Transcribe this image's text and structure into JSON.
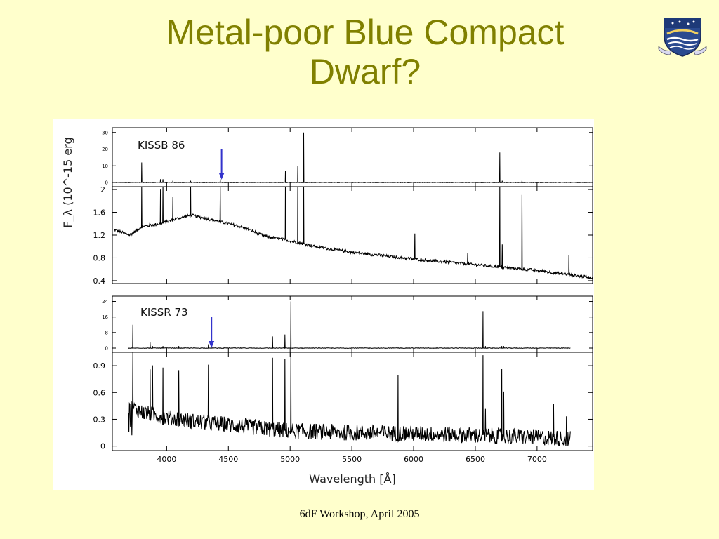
{
  "slide": {
    "title_line1": "Metal-poor Blue Compact",
    "title_line2": "Dwarf?",
    "footer": "6dF Workshop, April 2005",
    "title_color": "#808000",
    "background_color": "#ffffcc"
  },
  "chart_data": {
    "type": "line",
    "xlabel": "Wavelength [Å]",
    "ylabel": "F_λ (10^-15 erg",
    "x_ticks": [
      4000,
      4500,
      5000,
      5500,
      6000,
      6500,
      7000
    ],
    "xlim": [
      3560,
      7450
    ],
    "objects": [
      {
        "name": "KISSB 86",
        "arrow_at": 4445,
        "zoom_panel": {
          "ylim": [
            0,
            32
          ],
          "y_ticks": [
            0,
            10,
            20,
            30
          ]
        },
        "main_panel": {
          "ylim": [
            0.35,
            2.05
          ],
          "y_ticks": [
            0.4,
            0.8,
            1.2,
            1.6,
            2
          ]
        },
        "x_range": [
          3570,
          7450
        ],
        "continuum": [
          [
            3570,
            1.3
          ],
          [
            3700,
            1.2
          ],
          [
            3800,
            1.35
          ],
          [
            3950,
            1.4
          ],
          [
            4100,
            1.5
          ],
          [
            4200,
            1.55
          ],
          [
            4400,
            1.45
          ],
          [
            4600,
            1.35
          ],
          [
            4800,
            1.18
          ],
          [
            5000,
            1.1
          ],
          [
            5200,
            1.0
          ],
          [
            5500,
            0.9
          ],
          [
            6000,
            0.78
          ],
          [
            6500,
            0.68
          ],
          [
            7000,
            0.58
          ],
          [
            7450,
            0.45
          ]
        ],
        "lines": [
          {
            "wave": 3800,
            "main": 1.6,
            "zoom": 12
          },
          {
            "wave": 3950,
            "main": 0.6,
            "zoom": 2
          },
          {
            "wave": 3970,
            "main": 0.7,
            "zoom": 2
          },
          {
            "wave": 4050,
            "main": 0.4,
            "zoom": 1
          },
          {
            "wave": 4195,
            "main": 0.5,
            "zoom": 1
          },
          {
            "wave": 4435,
            "main": 0.8,
            "zoom": 2
          },
          {
            "wave": 4965,
            "main": 1.3,
            "zoom": 7
          },
          {
            "wave": 5065,
            "main": 1.1,
            "zoom": 10
          },
          {
            "wave": 5110,
            "main": 1.6,
            "zoom": 30
          },
          {
            "wave": 6010,
            "main": 0.45,
            "zoom": 0
          },
          {
            "wave": 6440,
            "main": 0.2,
            "zoom": 0
          },
          {
            "wave": 6700,
            "main": 1.6,
            "zoom": 18
          },
          {
            "wave": 6720,
            "main": 0.4,
            "zoom": 1
          },
          {
            "wave": 6880,
            "main": 1.3,
            "zoom": 1
          },
          {
            "wave": 7260,
            "main": 0.35,
            "zoom": 0
          }
        ]
      },
      {
        "name": "KISSR 73",
        "arrow_at": 4363,
        "zoom_panel": {
          "ylim": [
            0,
            26
          ],
          "y_ticks": [
            0,
            8,
            16,
            24
          ]
        },
        "main_panel": {
          "ylim": [
            -0.05,
            1.05
          ],
          "y_ticks": [
            0,
            0.3,
            0.6,
            0.9
          ]
        },
        "x_range": [
          3690,
          7270
        ],
        "continuum": [
          [
            3700,
            0.45
          ],
          [
            3800,
            0.38
          ],
          [
            4000,
            0.32
          ],
          [
            4200,
            0.28
          ],
          [
            4500,
            0.24
          ],
          [
            5000,
            0.17
          ],
          [
            5500,
            0.15
          ],
          [
            6000,
            0.14
          ],
          [
            6500,
            0.12
          ],
          [
            7000,
            0.1
          ],
          [
            7270,
            0.08
          ]
        ],
        "lines": [
          {
            "wave": 3727,
            "main": 0.7,
            "zoom": 12
          },
          {
            "wave": 3869,
            "main": 0.5,
            "zoom": 3
          },
          {
            "wave": 3889,
            "main": 0.55,
            "zoom": 1
          },
          {
            "wave": 3970,
            "main": 0.55,
            "zoom": 1
          },
          {
            "wave": 4101,
            "main": 0.55,
            "zoom": 1
          },
          {
            "wave": 4340,
            "main": 0.65,
            "zoom": 2
          },
          {
            "wave": 4861,
            "main": 0.8,
            "zoom": 6
          },
          {
            "wave": 4959,
            "main": 0.8,
            "zoom": 7
          },
          {
            "wave": 5007,
            "main": 0.9,
            "zoom": 24
          },
          {
            "wave": 5876,
            "main": 0.65,
            "zoom": 0
          },
          {
            "wave": 6563,
            "main": 0.9,
            "zoom": 19
          },
          {
            "wave": 6584,
            "main": 0.3,
            "zoom": 1
          },
          {
            "wave": 6717,
            "main": 0.75,
            "zoom": 1
          },
          {
            "wave": 6731,
            "main": 0.5,
            "zoom": 1
          },
          {
            "wave": 7136,
            "main": 0.38,
            "zoom": 0
          },
          {
            "wave": 7240,
            "main": 0.25,
            "zoom": 0
          }
        ]
      }
    ]
  }
}
